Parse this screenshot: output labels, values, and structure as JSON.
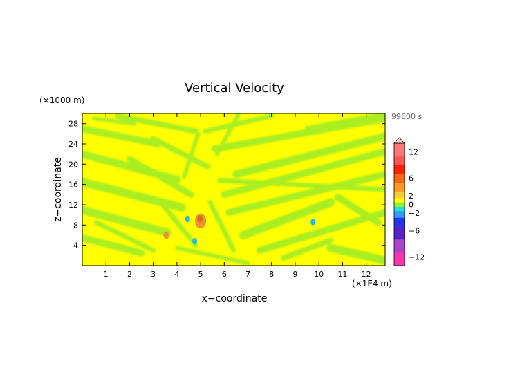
{
  "chart_data": {
    "type": "heatmap",
    "title": "Vertical Velocity",
    "xlabel": "x−coordinate",
    "ylabel": "z−coordinate",
    "x_unit": "(×1E4 m)",
    "y_unit": "(×1000 m)",
    "time_label": "99600 s",
    "xlim": [
      0,
      12.8
    ],
    "ylim": [
      0,
      30
    ],
    "x_ticks": [
      "1",
      "2",
      "3",
      "4",
      "5",
      "6",
      "7",
      "8",
      "9",
      "10",
      "11",
      "12"
    ],
    "y_ticks": [
      "4",
      "8",
      "12",
      "16",
      "20",
      "24",
      "28"
    ],
    "colorbar": {
      "range": [
        -14,
        14
      ],
      "tick_labels": [
        "12",
        "6",
        "2",
        "0",
        "−2",
        "−6",
        "−12"
      ],
      "tick_values": [
        12,
        6,
        2,
        0,
        -2,
        -6,
        -12
      ]
    },
    "colors": {
      "yellow": "#ffff00",
      "green": "#aaee22",
      "orange": "#e89530",
      "cyan": "#22c0d0",
      "blue": "#3070e0"
    },
    "features": [
      {
        "name": "orange cell",
        "x": 5.0,
        "z": 8.8,
        "value": 8
      },
      {
        "name": "orange cell",
        "x": 3.55,
        "z": 6.0,
        "value": 6
      },
      {
        "name": "cyan cell",
        "x": 9.75,
        "z": 8.6,
        "value": -3
      },
      {
        "name": "cyan cell",
        "x": 4.75,
        "z": 4.8,
        "value": -3
      },
      {
        "name": "cyan cell",
        "x": 4.45,
        "z": 9.2,
        "value": -2
      }
    ]
  }
}
